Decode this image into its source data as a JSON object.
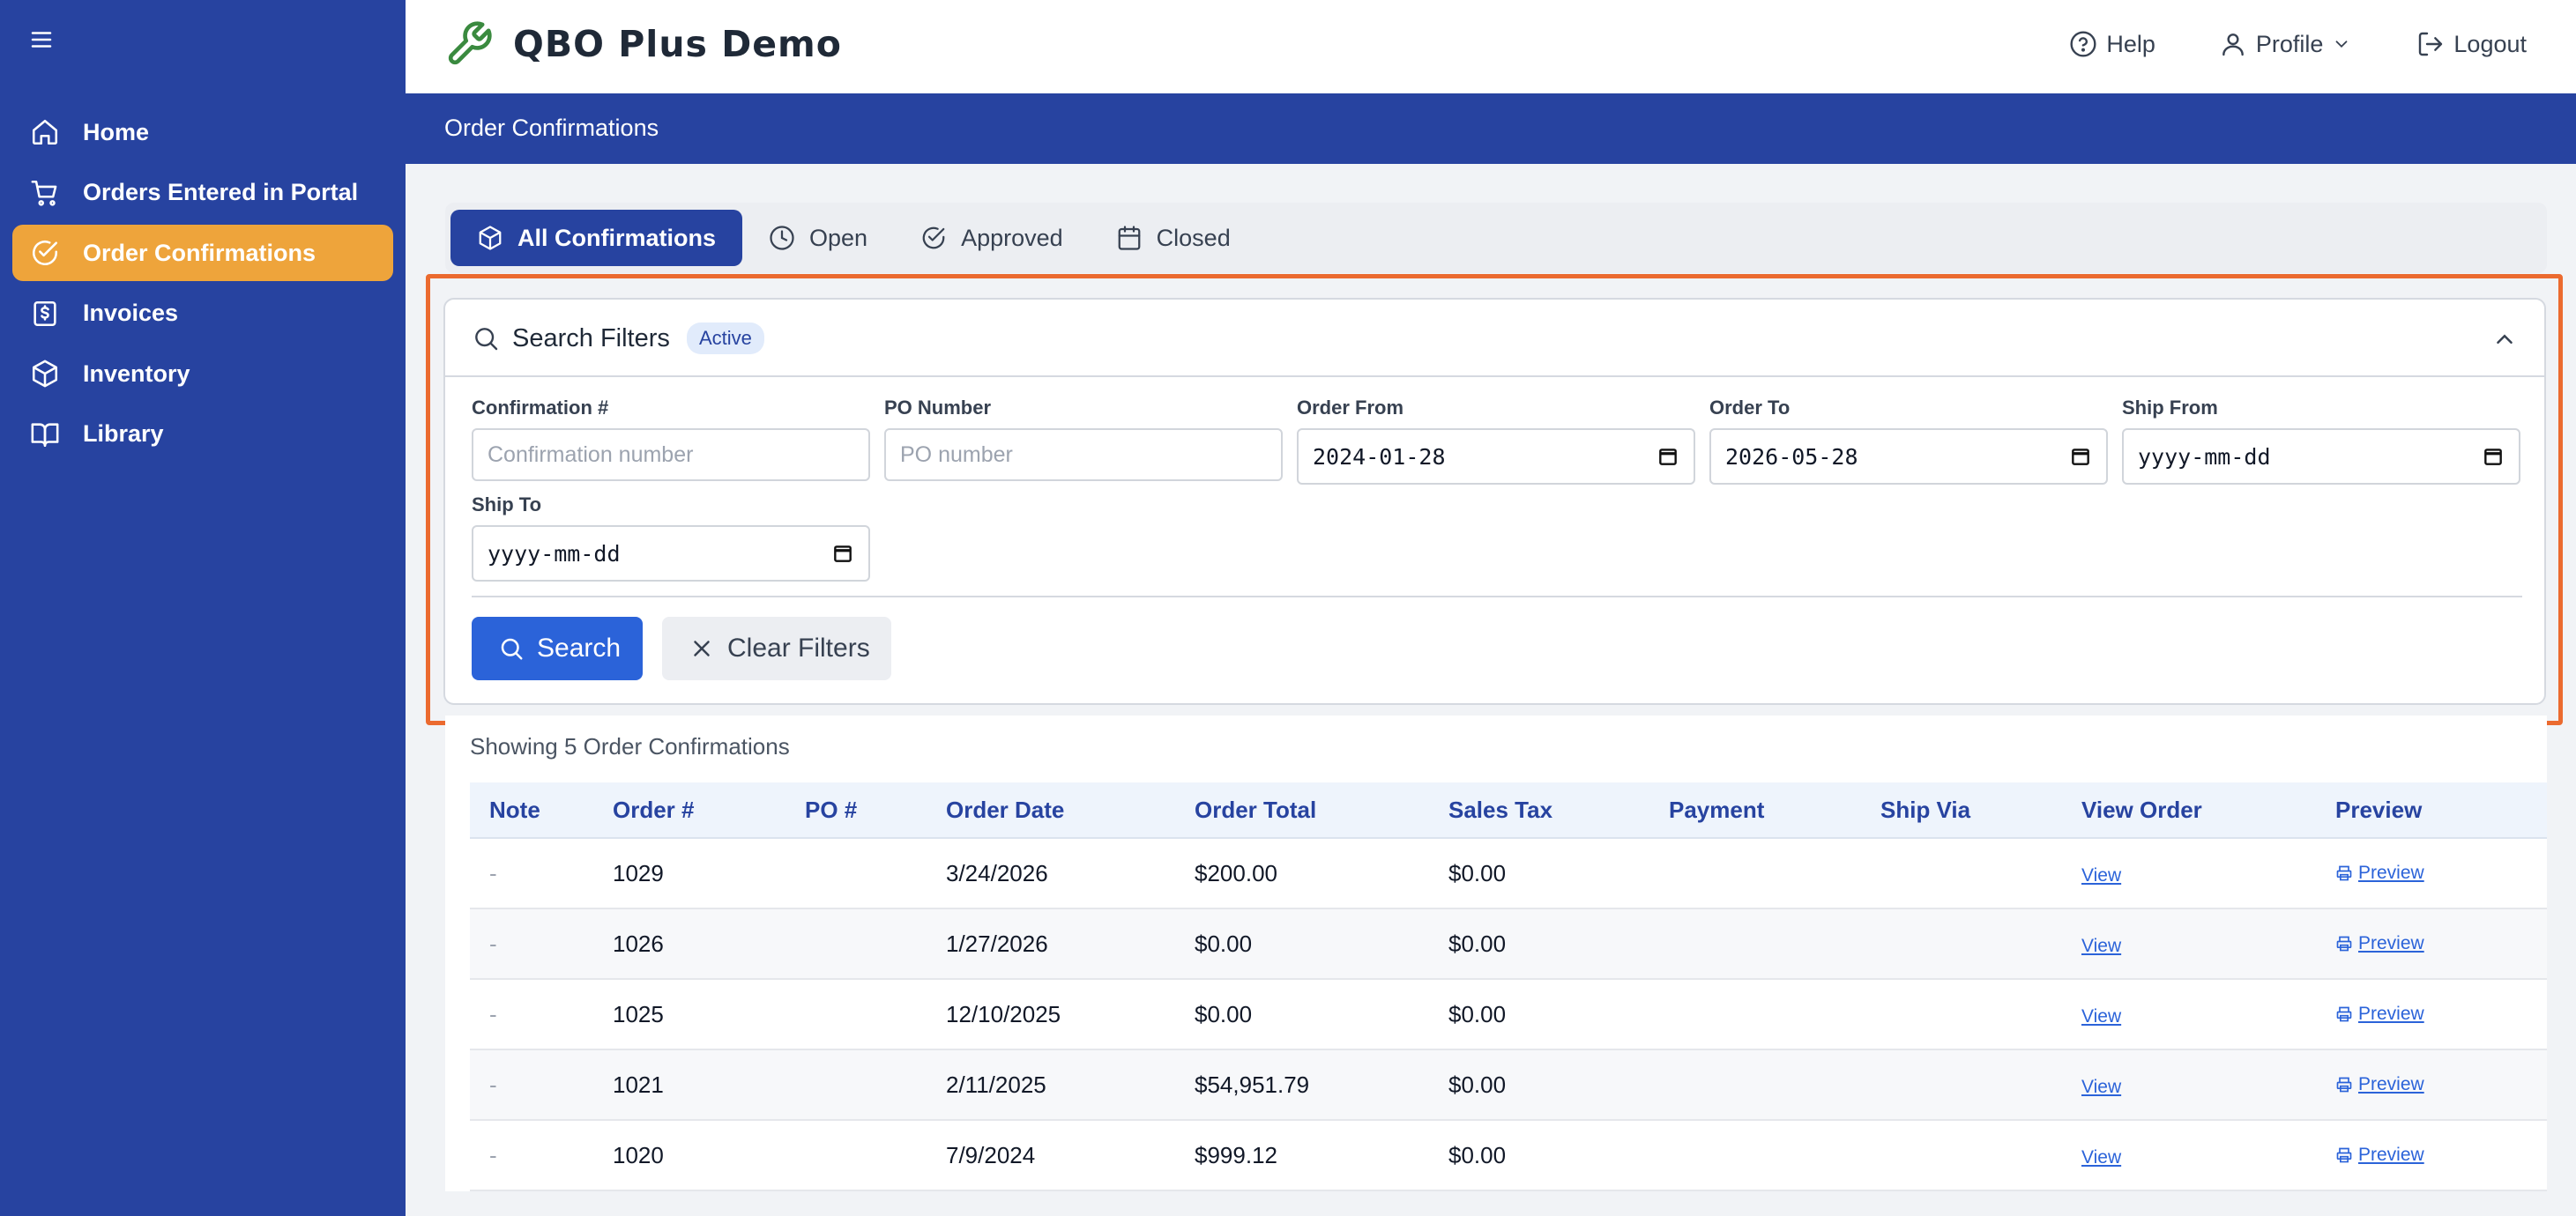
{
  "app": {
    "title": "QBO Plus Demo"
  },
  "header": {
    "help_label": "Help",
    "profile_label": "Profile",
    "logout_label": "Logout"
  },
  "sidebar": {
    "items": [
      {
        "label": "Home",
        "icon": "home-icon"
      },
      {
        "label": "Orders Entered in Portal",
        "icon": "cart-icon"
      },
      {
        "label": "Order Confirmations",
        "icon": "check-circle-icon",
        "active": true
      },
      {
        "label": "Invoices",
        "icon": "dollar-icon"
      },
      {
        "label": "Inventory",
        "icon": "box-icon"
      },
      {
        "label": "Library",
        "icon": "book-icon"
      }
    ]
  },
  "page": {
    "title": "Order Confirmations"
  },
  "tabs": [
    {
      "label": "All Confirmations",
      "icon": "box-icon",
      "active": true
    },
    {
      "label": "Open",
      "icon": "clock-icon"
    },
    {
      "label": "Approved",
      "icon": "check-circle-icon"
    },
    {
      "label": "Closed",
      "icon": "calendar-icon"
    }
  ],
  "filters": {
    "title": "Search Filters",
    "badge": "Active",
    "fields": {
      "confirmation": {
        "label": "Confirmation #",
        "placeholder": "Confirmation number",
        "value": ""
      },
      "po_number": {
        "label": "PO Number",
        "placeholder": "PO number",
        "value": ""
      },
      "order_from": {
        "label": "Order From",
        "value": "2024-01-28"
      },
      "order_to": {
        "label": "Order To",
        "value": "2026-05-28"
      },
      "ship_from": {
        "label": "Ship From",
        "value": "yyyy-mm-dd"
      },
      "ship_to": {
        "label": "Ship To",
        "value": "yyyy-mm-dd"
      }
    },
    "search_label": "Search",
    "clear_label": "Clear Filters"
  },
  "accent": {
    "sidebar_blue": "#2743a0",
    "active_orange": "#eea43b",
    "highlight_orange": "#eb6a2f",
    "button_blue": "#2b63d9"
  },
  "results": {
    "summary": "Showing 5 Order Confirmations",
    "columns": [
      "Note",
      "Order #",
      "PO #",
      "Order Date",
      "Order Total",
      "Sales Tax",
      "Payment",
      "Ship Via",
      "View Order",
      "Preview"
    ],
    "rows": [
      {
        "note": "-",
        "order": "1029",
        "po": "",
        "date": "3/24/2026",
        "total": "$200.00",
        "tax": "$0.00",
        "payment": "",
        "ship_via": "",
        "view": "View",
        "preview": "Preview"
      },
      {
        "note": "-",
        "order": "1026",
        "po": "",
        "date": "1/27/2026",
        "total": "$0.00",
        "tax": "$0.00",
        "payment": "",
        "ship_via": "",
        "view": "View",
        "preview": "Preview"
      },
      {
        "note": "-",
        "order": "1025",
        "po": "",
        "date": "12/10/2025",
        "total": "$0.00",
        "tax": "$0.00",
        "payment": "",
        "ship_via": "",
        "view": "View",
        "preview": "Preview"
      },
      {
        "note": "-",
        "order": "1021",
        "po": "",
        "date": "2/11/2025",
        "total": "$54,951.79",
        "tax": "$0.00",
        "payment": "",
        "ship_via": "",
        "view": "View",
        "preview": "Preview"
      },
      {
        "note": "-",
        "order": "1020",
        "po": "",
        "date": "7/9/2024",
        "total": "$999.12",
        "tax": "$0.00",
        "payment": "",
        "ship_via": "",
        "view": "View",
        "preview": "Preview"
      }
    ]
  }
}
